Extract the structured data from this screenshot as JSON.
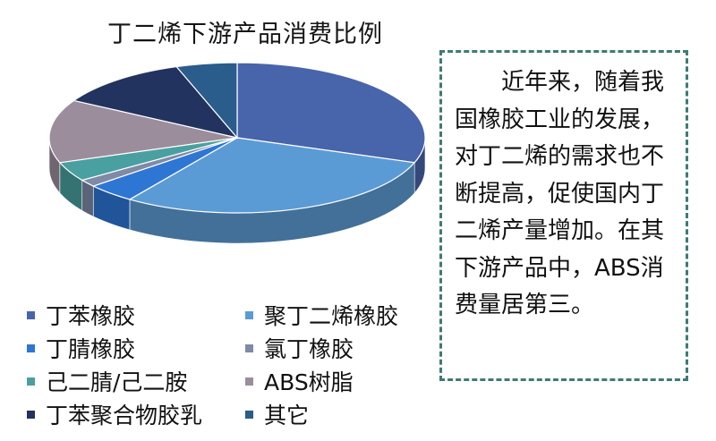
{
  "chart_data": {
    "type": "pie",
    "title": "丁二烯下游产品消费比例",
    "slices": [
      {
        "label": "丁苯橡胶",
        "value": 29,
        "color": "#4864ab"
      },
      {
        "label": "聚丁二烯橡胶",
        "value": 28,
        "color": "#5b9bd5"
      },
      {
        "label": "丁腈橡胶",
        "value": 4,
        "color": "#2e76d4"
      },
      {
        "label": "氯丁橡胶",
        "value": 1.5,
        "color": "#7f8aa6"
      },
      {
        "label": "己二腈/己二胺",
        "value": 4,
        "color": "#4aa0a0"
      },
      {
        "label": "ABS树脂",
        "value": 13,
        "color": "#9c8d9c"
      },
      {
        "label": "丁苯聚合物胶乳",
        "value": 11,
        "color": "#22335f"
      },
      {
        "label": "其它",
        "value": 5,
        "color": "#2a5c8c"
      }
    ],
    "legend_position": "bottom",
    "three_d": true
  },
  "text_box": {
    "text": "近年来，随着我国橡胶工业的发展，对丁二烯的需求也不断提高，促使国内丁二烯产量增加。在其下游产品中，ABS消费量居第三。"
  }
}
